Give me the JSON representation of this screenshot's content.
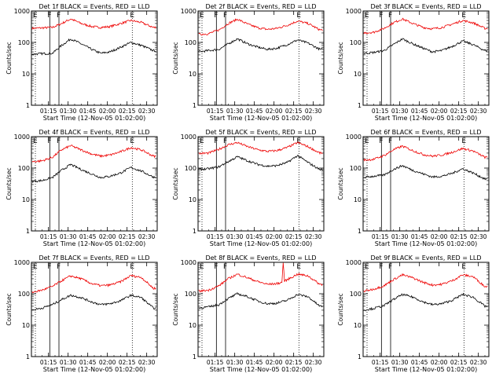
{
  "figure": {
    "xlabel": "Start Time (12-Nov-05 01:02:00)",
    "ylabel": "Counts/sec",
    "colors": {
      "events": "#000000",
      "lld": "#ee0000",
      "axes": "#000000",
      "background": "#ffffff"
    }
  },
  "chart_data": [
    {
      "type": "line",
      "title": "Det 1f BLACK = Events, RED = LLD",
      "x_ticks": [
        "01:15",
        "01:30",
        "01:45",
        "02:00",
        "02:15",
        "02:30"
      ],
      "y_scale": "log",
      "ylim": [
        1,
        1000
      ],
      "y_ticks": [
        "1",
        "10",
        "100",
        "1000"
      ],
      "markers": [
        {
          "label": "E",
          "time": "01:05",
          "style": "dotted"
        },
        {
          "label": "F",
          "time": "01:16",
          "style": "solid"
        },
        {
          "label": "F",
          "time": "01:23",
          "style": "solid"
        },
        {
          "label": "E",
          "time": "02:19",
          "style": "dotted"
        }
      ],
      "series": [
        {
          "name": "LLD",
          "color": "#ee0000",
          "x": [
            "01:02",
            "01:10",
            "01:18",
            "01:25",
            "01:32",
            "01:40",
            "01:48",
            "01:55",
            "02:02",
            "02:10",
            "02:18",
            "02:26",
            "02:35"
          ],
          "values": [
            280,
            290,
            300,
            400,
            560,
            400,
            320,
            300,
            320,
            400,
            500,
            430,
            300
          ]
        },
        {
          "name": "Events",
          "color": "#000000",
          "x": [
            "01:02",
            "01:10",
            "01:18",
            "01:25",
            "01:32",
            "01:40",
            "01:48",
            "01:55",
            "02:02",
            "02:10",
            "02:18",
            "02:26",
            "02:35"
          ],
          "values": [
            42,
            44,
            45,
            80,
            130,
            90,
            60,
            45,
            50,
            70,
            100,
            80,
            55
          ]
        }
      ]
    },
    {
      "type": "line",
      "title": "Det 2f BLACK = Events, RED = LLD",
      "x_ticks": [
        "01:15",
        "01:30",
        "01:45",
        "02:00",
        "02:15",
        "02:30"
      ],
      "y_scale": "log",
      "ylim": [
        1,
        1000
      ],
      "y_ticks": [
        "1",
        "10",
        "100",
        "1000"
      ],
      "markers": [
        {
          "label": "E",
          "time": "01:05",
          "style": "dotted"
        },
        {
          "label": "F",
          "time": "01:16",
          "style": "solid"
        },
        {
          "label": "F",
          "time": "01:23",
          "style": "solid"
        },
        {
          "label": "E",
          "time": "02:19",
          "style": "dotted"
        }
      ],
      "series": [
        {
          "name": "LLD",
          "color": "#ee0000",
          "x": [
            "01:02",
            "01:10",
            "01:18",
            "01:25",
            "01:32",
            "01:40",
            "01:48",
            "01:55",
            "02:02",
            "02:10",
            "02:18",
            "02:26",
            "02:35"
          ],
          "values": [
            180,
            190,
            250,
            400,
            550,
            380,
            290,
            260,
            280,
            350,
            480,
            400,
            250
          ]
        },
        {
          "name": "Events",
          "color": "#000000",
          "x": [
            "01:02",
            "01:10",
            "01:18",
            "01:25",
            "01:32",
            "01:40",
            "01:48",
            "01:55",
            "02:02",
            "02:10",
            "02:18",
            "02:26",
            "02:35"
          ],
          "values": [
            50,
            55,
            60,
            90,
            130,
            90,
            70,
            60,
            65,
            85,
            120,
            95,
            60
          ]
        }
      ]
    },
    {
      "type": "line",
      "title": "Det 3f BLACK = Events, RED = LLD",
      "x_ticks": [
        "01:15",
        "01:30",
        "01:45",
        "02:00",
        "02:15",
        "02:30"
      ],
      "y_scale": "log",
      "ylim": [
        1,
        1000
      ],
      "y_ticks": [
        "1",
        "10",
        "100",
        "1000"
      ],
      "markers": [
        {
          "label": "E",
          "time": "01:05",
          "style": "dotted"
        },
        {
          "label": "F",
          "time": "01:16",
          "style": "solid"
        },
        {
          "label": "F",
          "time": "01:23",
          "style": "solid"
        },
        {
          "label": "E",
          "time": "02:19",
          "style": "dotted"
        }
      ],
      "series": [
        {
          "name": "LLD",
          "color": "#ee0000",
          "x": [
            "01:02",
            "01:10",
            "01:18",
            "01:25",
            "01:32",
            "01:40",
            "01:48",
            "01:55",
            "02:02",
            "02:10",
            "02:18",
            "02:26",
            "02:35"
          ],
          "values": [
            200,
            210,
            280,
            420,
            560,
            400,
            300,
            270,
            300,
            380,
            500,
            420,
            280
          ]
        },
        {
          "name": "Events",
          "color": "#000000",
          "x": [
            "01:02",
            "01:10",
            "01:18",
            "01:25",
            "01:32",
            "01:40",
            "01:48",
            "01:55",
            "02:02",
            "02:10",
            "02:18",
            "02:26",
            "02:35"
          ],
          "values": [
            45,
            48,
            55,
            85,
            130,
            90,
            65,
            50,
            55,
            75,
            110,
            85,
            55
          ]
        }
      ]
    },
    {
      "type": "line",
      "title": "Det 4f BLACK = Events, RED = LLD",
      "x_ticks": [
        "01:15",
        "01:30",
        "01:45",
        "02:00",
        "02:15",
        "02:30"
      ],
      "y_scale": "log",
      "ylim": [
        1,
        1000
      ],
      "y_ticks": [
        "1",
        "10",
        "100",
        "1000"
      ],
      "markers": [
        {
          "label": "E",
          "time": "01:05",
          "style": "dotted"
        },
        {
          "label": "F",
          "time": "01:16",
          "style": "solid"
        },
        {
          "label": "F",
          "time": "01:23",
          "style": "solid"
        },
        {
          "label": "E",
          "time": "02:19",
          "style": "dotted"
        }
      ],
      "series": [
        {
          "name": "LLD",
          "color": "#ee0000",
          "x": [
            "01:02",
            "01:10",
            "01:18",
            "01:25",
            "01:32",
            "01:40",
            "01:48",
            "01:55",
            "02:02",
            "02:10",
            "02:18",
            "02:26",
            "02:35"
          ],
          "values": [
            160,
            170,
            220,
            380,
            520,
            380,
            280,
            240,
            260,
            330,
            450,
            380,
            240
          ]
        },
        {
          "name": "Events",
          "color": "#000000",
          "x": [
            "01:02",
            "01:10",
            "01:18",
            "01:25",
            "01:32",
            "01:40",
            "01:48",
            "01:55",
            "02:02",
            "02:10",
            "02:18",
            "02:26",
            "02:35"
          ],
          "values": [
            38,
            40,
            50,
            85,
            130,
            90,
            65,
            50,
            55,
            70,
            105,
            80,
            52
          ]
        }
      ]
    },
    {
      "type": "line",
      "title": "Det 5f BLACK = Events, RED = LLD",
      "x_ticks": [
        "01:15",
        "01:30",
        "01:45",
        "02:00",
        "02:15",
        "02:30"
      ],
      "y_scale": "log",
      "ylim": [
        1,
        1000
      ],
      "y_ticks": [
        "1",
        "10",
        "100",
        "1000"
      ],
      "markers": [
        {
          "label": "E",
          "time": "01:05",
          "style": "dotted"
        },
        {
          "label": "F",
          "time": "01:16",
          "style": "solid"
        },
        {
          "label": "F",
          "time": "01:23",
          "style": "solid"
        },
        {
          "label": "E",
          "time": "02:19",
          "style": "dotted"
        }
      ],
      "series": [
        {
          "name": "LLD",
          "color": "#ee0000",
          "x": [
            "01:02",
            "01:10",
            "01:18",
            "01:25",
            "01:32",
            "01:40",
            "01:48",
            "01:55",
            "02:02",
            "02:10",
            "02:18",
            "02:26",
            "02:35"
          ],
          "values": [
            290,
            300,
            400,
            550,
            650,
            480,
            380,
            340,
            360,
            450,
            650,
            480,
            300
          ]
        },
        {
          "name": "Events",
          "color": "#000000",
          "x": [
            "01:02",
            "01:10",
            "01:18",
            "01:25",
            "01:32",
            "01:40",
            "01:48",
            "01:55",
            "02:02",
            "02:10",
            "02:18",
            "02:26",
            "02:35"
          ],
          "values": [
            90,
            95,
            110,
            160,
            230,
            170,
            130,
            115,
            120,
            150,
            250,
            150,
            90
          ]
        }
      ]
    },
    {
      "type": "line",
      "title": "Det 6f BLACK = Events, RED = LLD",
      "x_ticks": [
        "01:15",
        "01:30",
        "01:45",
        "02:00",
        "02:15",
        "02:30"
      ],
      "y_scale": "log",
      "ylim": [
        1,
        1000
      ],
      "y_ticks": [
        "1",
        "10",
        "100",
        "1000"
      ],
      "markers": [
        {
          "label": "E",
          "time": "01:05",
          "style": "dotted"
        },
        {
          "label": "F",
          "time": "01:16",
          "style": "solid"
        },
        {
          "label": "F",
          "time": "01:23",
          "style": "solid"
        },
        {
          "label": "E",
          "time": "02:19",
          "style": "dotted"
        }
      ],
      "series": [
        {
          "name": "LLD",
          "color": "#ee0000",
          "x": [
            "01:02",
            "01:10",
            "01:18",
            "01:25",
            "01:32",
            "01:40",
            "01:48",
            "01:55",
            "02:02",
            "02:10",
            "02:18",
            "02:26",
            "02:35"
          ],
          "values": [
            180,
            190,
            250,
            380,
            500,
            360,
            270,
            240,
            260,
            320,
            420,
            350,
            220
          ]
        },
        {
          "name": "Events",
          "color": "#000000",
          "x": [
            "01:02",
            "01:10",
            "01:18",
            "01:25",
            "01:32",
            "01:40",
            "01:48",
            "01:55",
            "02:02",
            "02:10",
            "02:18",
            "02:26",
            "02:35"
          ],
          "values": [
            50,
            55,
            60,
            90,
            120,
            85,
            65,
            52,
            55,
            68,
            95,
            70,
            45
          ]
        }
      ]
    },
    {
      "type": "line",
      "title": "Det 7f BLACK = Events, RED = LLD",
      "x_ticks": [
        "01:15",
        "01:30",
        "01:45",
        "02:00",
        "02:15",
        "02:30"
      ],
      "y_scale": "log",
      "ylim": [
        1,
        1000
      ],
      "y_ticks": [
        "1",
        "10",
        "100",
        "1000"
      ],
      "markers": [
        {
          "label": "E",
          "time": "01:05",
          "style": "dotted"
        },
        {
          "label": "F",
          "time": "01:16",
          "style": "solid"
        },
        {
          "label": "F",
          "time": "01:23",
          "style": "solid"
        },
        {
          "label": "E",
          "time": "02:19",
          "style": "dotted"
        }
      ],
      "series": [
        {
          "name": "LLD",
          "color": "#ee0000",
          "x": [
            "01:02",
            "01:10",
            "01:18",
            "01:25",
            "01:32",
            "01:40",
            "01:48",
            "01:55",
            "02:02",
            "02:10",
            "02:18",
            "02:26",
            "02:35"
          ],
          "values": [
            110,
            130,
            170,
            260,
            370,
            300,
            210,
            180,
            190,
            240,
            380,
            330,
            150
          ]
        },
        {
          "name": "Events",
          "color": "#000000",
          "x": [
            "01:02",
            "01:10",
            "01:18",
            "01:25",
            "01:32",
            "01:40",
            "01:48",
            "01:55",
            "02:02",
            "02:10",
            "02:18",
            "02:26",
            "02:35"
          ],
          "values": [
            30,
            35,
            45,
            65,
            90,
            75,
            55,
            45,
            48,
            60,
            90,
            75,
            35
          ]
        }
      ]
    },
    {
      "type": "line",
      "title": "Det 8f BLACK = Events, RED = LLD",
      "x_ticks": [
        "01:15",
        "01:30",
        "01:45",
        "02:00",
        "02:15",
        "02:30"
      ],
      "y_scale": "log",
      "ylim": [
        1,
        1000
      ],
      "y_ticks": [
        "1",
        "10",
        "100",
        "1000"
      ],
      "markers": [
        {
          "label": "E",
          "time": "01:05",
          "style": "dotted"
        },
        {
          "label": "F",
          "time": "01:16",
          "style": "solid"
        },
        {
          "label": "F",
          "time": "01:23",
          "style": "solid"
        },
        {
          "label": "E",
          "time": "02:19",
          "style": "dotted"
        }
      ],
      "series": [
        {
          "name": "LLD",
          "color": "#ee0000",
          "x": [
            "01:02",
            "01:10",
            "01:18",
            "01:25",
            "01:32",
            "01:40",
            "01:48",
            "01:55",
            "02:02",
            "02:06",
            "02:07",
            "02:08",
            "02:10",
            "02:18",
            "02:26",
            "02:35"
          ],
          "values": [
            120,
            130,
            180,
            300,
            420,
            320,
            240,
            200,
            210,
            230,
            1000,
            250,
            280,
            420,
            370,
            200
          ]
        },
        {
          "name": "Events",
          "color": "#000000",
          "x": [
            "01:02",
            "01:10",
            "01:18",
            "01:25",
            "01:32",
            "01:40",
            "01:48",
            "01:55",
            "02:02",
            "02:10",
            "02:18",
            "02:26",
            "02:35"
          ],
          "values": [
            35,
            38,
            45,
            70,
            100,
            80,
            58,
            48,
            50,
            62,
            95,
            80,
            40
          ]
        }
      ]
    },
    {
      "type": "line",
      "title": "Det 9f BLACK = Events, RED = LLD",
      "x_ticks": [
        "01:15",
        "01:30",
        "01:45",
        "02:00",
        "02:15",
        "02:30"
      ],
      "y_scale": "log",
      "ylim": [
        1,
        1000
      ],
      "y_ticks": [
        "1",
        "10",
        "100",
        "1000"
      ],
      "markers": [
        {
          "label": "E",
          "time": "01:05",
          "style": "dotted"
        },
        {
          "label": "F",
          "time": "01:16",
          "style": "solid"
        },
        {
          "label": "F",
          "time": "01:23",
          "style": "solid"
        },
        {
          "label": "E",
          "time": "02:19",
          "style": "dotted"
        }
      ],
      "series": [
        {
          "name": "LLD",
          "color": "#ee0000",
          "x": [
            "01:02",
            "01:10",
            "01:18",
            "01:25",
            "01:32",
            "01:40",
            "01:48",
            "01:55",
            "02:02",
            "02:10",
            "02:18",
            "02:26",
            "02:35"
          ],
          "values": [
            120,
            140,
            180,
            280,
            400,
            320,
            230,
            190,
            200,
            260,
            400,
            350,
            170
          ]
        },
        {
          "name": "Events",
          "color": "#000000",
          "x": [
            "01:02",
            "01:10",
            "01:18",
            "01:25",
            "01:32",
            "01:40",
            "01:48",
            "01:55",
            "02:02",
            "02:10",
            "02:18",
            "02:26",
            "02:35"
          ],
          "values": [
            30,
            34,
            42,
            65,
            95,
            78,
            55,
            45,
            48,
            62,
            95,
            78,
            40
          ]
        }
      ]
    }
  ]
}
